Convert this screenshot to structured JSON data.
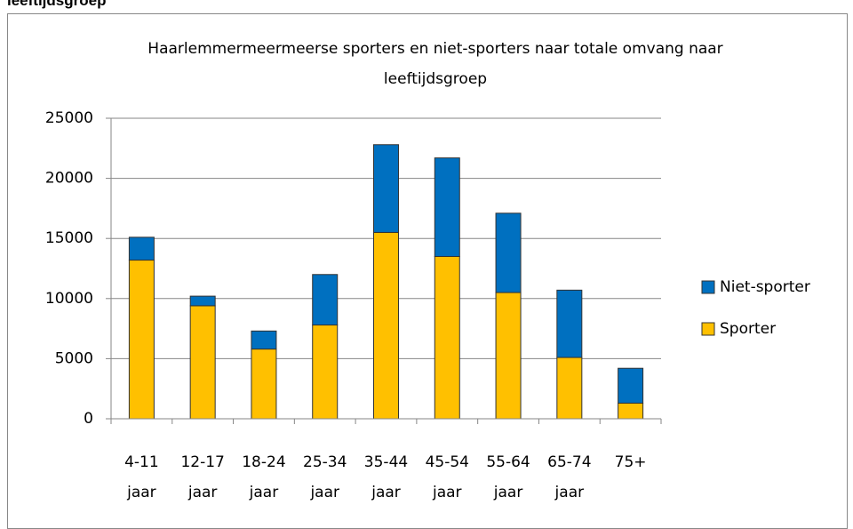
{
  "heading": "leeftijdsgroep",
  "chart_data": {
    "type": "stacked_bar",
    "title": "Haarlemmermeermeerse sporters en niet-sporters naar totale omvang naar leeftijdsgroep",
    "categories": [
      "4-11 jaar",
      "12-17 jaar",
      "18-24 jaar",
      "25-34 jaar",
      "35-44 jaar",
      "45-54 jaar",
      "55-64 jaar",
      "65-74 jaar",
      "75+"
    ],
    "series": [
      {
        "name": "Sporter",
        "color": "#FFC000",
        "values": [
          13200,
          9400,
          5800,
          7800,
          15500,
          13500,
          10500,
          5100,
          1300
        ]
      },
      {
        "name": "Niet-sporter",
        "color": "#0070C0",
        "values": [
          1900,
          800,
          1500,
          4200,
          7300,
          8200,
          6600,
          5600,
          2900
        ]
      }
    ],
    "ylim": [
      0,
      25000
    ],
    "yticks": [
      0,
      5000,
      10000,
      15000,
      20000,
      25000
    ],
    "grid": true,
    "legend": "right"
  }
}
